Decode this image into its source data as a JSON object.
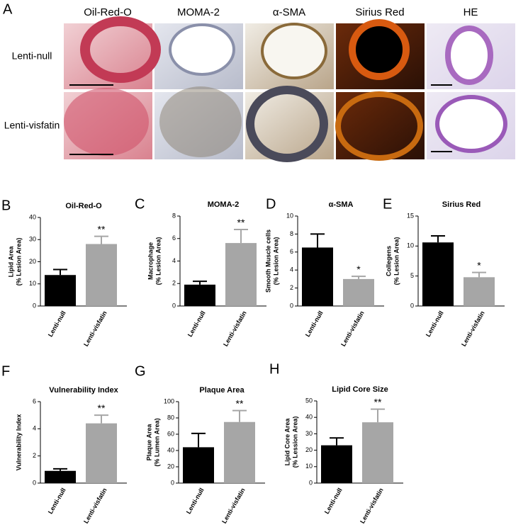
{
  "image_panel": {
    "label": "A",
    "columns": [
      "Oil-Red-O",
      "MOMA-2",
      "α-SMA",
      "Sirius Red",
      "HE"
    ],
    "rows": [
      "Lenti-null",
      "Lenti-visfatin"
    ]
  },
  "chart_data": [
    {
      "type": "bar",
      "panel": "B",
      "title": "Oil-Red-O",
      "y_label": [
        "Lipid Area",
        "(% Lesion Area)"
      ],
      "categories": [
        "Lenti-null",
        "Lenti-visfatin"
      ],
      "values": [
        14,
        28
      ],
      "errors": [
        2.5,
        3.5
      ],
      "significance": [
        null,
        "**"
      ],
      "colors": [
        "#000000",
        "#a6a6a6"
      ],
      "ylim": [
        0,
        40
      ],
      "yticks": [
        0,
        10,
        20,
        30,
        40
      ]
    },
    {
      "type": "bar",
      "panel": "C",
      "title": "MOMA-2",
      "y_label": [
        "Macrophage",
        "(% Lesion Area)"
      ],
      "categories": [
        "Lenti-null",
        "Lenti-visfatin"
      ],
      "values": [
        1.9,
        5.6
      ],
      "errors": [
        0.3,
        1.2
      ],
      "significance": [
        null,
        "**"
      ],
      "colors": [
        "#000000",
        "#a6a6a6"
      ],
      "ylim": [
        0,
        8
      ],
      "yticks": [
        0,
        2,
        4,
        6,
        8
      ]
    },
    {
      "type": "bar",
      "panel": "D",
      "title": "α-SMA",
      "y_label": [
        "Smooth Muscle cells",
        "(% Lesion Area)"
      ],
      "categories": [
        "Lenti-null",
        "Lenti-visfatin"
      ],
      "values": [
        6.5,
        3.0
      ],
      "errors": [
        1.5,
        0.3
      ],
      "significance": [
        null,
        "*"
      ],
      "colors": [
        "#000000",
        "#a6a6a6"
      ],
      "ylim": [
        0,
        10
      ],
      "yticks": [
        0,
        2,
        4,
        6,
        8,
        10
      ]
    },
    {
      "type": "bar",
      "panel": "E",
      "title": "Sirius Red",
      "y_label": [
        "Collegens",
        "(% Lesion Area)"
      ],
      "categories": [
        "Lenti-null",
        "Lenti-visfatin"
      ],
      "values": [
        10.6,
        4.8
      ],
      "errors": [
        1.1,
        0.8
      ],
      "significance": [
        null,
        "*"
      ],
      "colors": [
        "#000000",
        "#a6a6a6"
      ],
      "ylim": [
        0,
        15
      ],
      "yticks": [
        0,
        5,
        10,
        15
      ]
    },
    {
      "type": "bar",
      "panel": "F",
      "title": "Vulnerability Index",
      "y_label": [
        "Vulnerability Index"
      ],
      "categories": [
        "Lenti-null",
        "Lenti-visfatin"
      ],
      "values": [
        0.9,
        4.4
      ],
      "errors": [
        0.15,
        0.6
      ],
      "significance": [
        null,
        "**"
      ],
      "colors": [
        "#000000",
        "#a6a6a6"
      ],
      "ylim": [
        0,
        6
      ],
      "yticks": [
        0,
        2,
        4,
        6
      ]
    },
    {
      "type": "bar",
      "panel": "G",
      "title": "Plaque Area",
      "y_label": [
        "Plaque Area",
        "(% Lumen Area)"
      ],
      "categories": [
        "Lenti-null",
        "Lenti-visfatin"
      ],
      "values": [
        44,
        75
      ],
      "errors": [
        17,
        14
      ],
      "significance": [
        null,
        "**"
      ],
      "colors": [
        "#000000",
        "#a6a6a6"
      ],
      "ylim": [
        0,
        100
      ],
      "yticks": [
        0,
        20,
        40,
        60,
        80,
        100
      ]
    },
    {
      "type": "bar",
      "panel": "H",
      "title": "Lipid Core Size",
      "y_label": [
        "Lipid Core Area",
        "(% Lession Area)"
      ],
      "categories": [
        "Lenti-null",
        "Lenti-visfatin"
      ],
      "values": [
        23,
        37
      ],
      "errors": [
        4.5,
        8
      ],
      "significance": [
        null,
        "**"
      ],
      "colors": [
        "#000000",
        "#a6a6a6"
      ],
      "ylim": [
        0,
        50
      ],
      "yticks": [
        0,
        10,
        20,
        30,
        40,
        50
      ]
    }
  ]
}
